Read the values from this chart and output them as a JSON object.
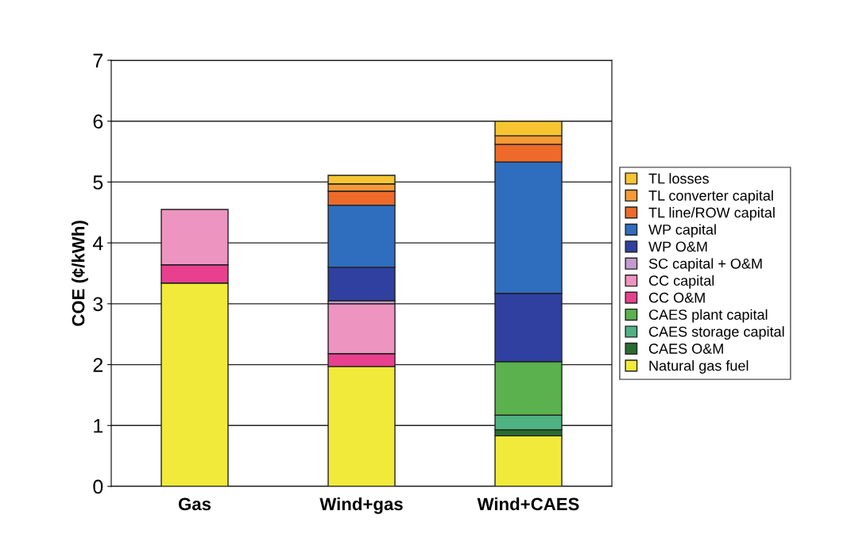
{
  "chart_data": {
    "type": "bar",
    "stacked": true,
    "ylabel": "COE (¢/kWh)",
    "categories": [
      "Gas",
      "Wind+gas",
      "Wind+CAES"
    ],
    "ylim": [
      0,
      7
    ],
    "yticks": [
      0,
      1,
      2,
      3,
      4,
      5,
      6,
      7
    ],
    "grid": "y",
    "legend": "right",
    "series": [
      {
        "name": "Natural gas fuel",
        "color": "#f2ea3a",
        "values": [
          3.34,
          1.97,
          0.83
        ]
      },
      {
        "name": "CAES O&M",
        "color": "#2b6b2e",
        "values": [
          null,
          null,
          0.1
        ]
      },
      {
        "name": "CAES storage capital",
        "color": "#4fb283",
        "values": [
          null,
          null,
          0.24
        ]
      },
      {
        "name": "CAES plant capital",
        "color": "#5bb14e",
        "values": [
          null,
          null,
          0.88
        ]
      },
      {
        "name": "CC O&M",
        "color": "#e8408e",
        "values": [
          0.3,
          0.21,
          null
        ]
      },
      {
        "name": "CC capital",
        "color": "#ee94c0",
        "values": [
          0.91,
          0.82,
          null
        ]
      },
      {
        "name": "SC capital + O&M",
        "color": "#c49bd1",
        "values": [
          null,
          0.05,
          null
        ]
      },
      {
        "name": "WP O&M",
        "color": "#2f40a0",
        "values": [
          null,
          0.55,
          1.12
        ]
      },
      {
        "name": "WP capital",
        "color": "#2f6dbf",
        "values": [
          null,
          1.02,
          2.16
        ]
      },
      {
        "name": "TL line/ROW capital",
        "color": "#ee6a2a",
        "values": [
          null,
          0.23,
          0.29
        ]
      },
      {
        "name": "TL converter capital",
        "color": "#f59a35",
        "values": [
          null,
          0.12,
          0.14
        ]
      },
      {
        "name": "TL losses",
        "color": "#f7c531",
        "values": [
          null,
          0.14,
          0.24
        ]
      }
    ]
  }
}
